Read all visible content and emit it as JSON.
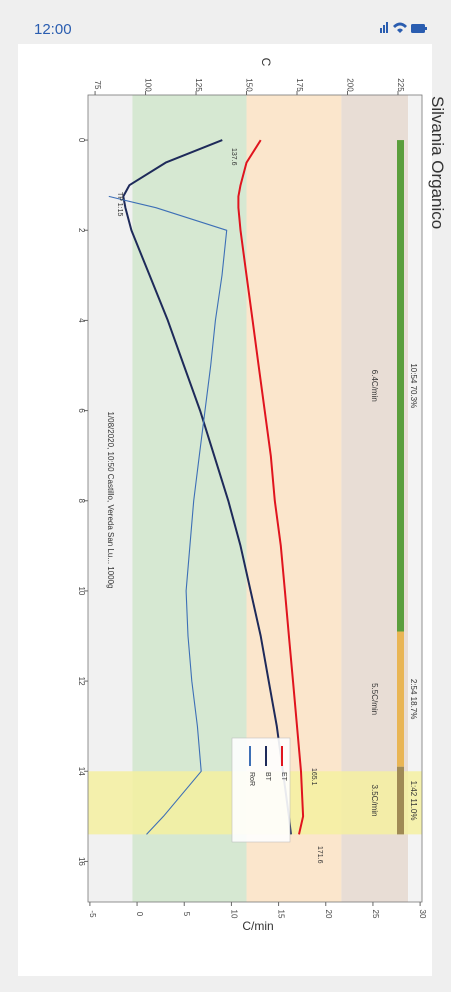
{
  "status_bar": {
    "time": "12:00"
  },
  "chart_data": {
    "type": "line",
    "title": "Silvania Organico",
    "ylabel": "C",
    "y2label": "C/min",
    "footer": "1/08/2020, 10:50  Castillo, Vereda San Lu...  1000g",
    "x": [
      0,
      0.5,
      1,
      1.25,
      1.5,
      2,
      3,
      4,
      5,
      6,
      7,
      8,
      9,
      10,
      11,
      12,
      13,
      14,
      15,
      15.4
    ],
    "xlim": [
      -1,
      16.9
    ],
    "xticks": [
      0,
      2,
      4,
      6,
      8,
      10,
      12,
      14,
      16
    ],
    "ylim": [
      71.5,
      236.9
    ],
    "yticks": [
      75,
      100,
      125,
      150,
      175,
      200,
      225
    ],
    "y2lim": [
      -5.2,
      30.2
    ],
    "y2ticks": [
      -5,
      0,
      5,
      10,
      15,
      20,
      25,
      30
    ],
    "series": [
      {
        "name": "ET",
        "color": "#e0141e",
        "values": [
          157,
          150,
          147,
          146,
          146,
          147,
          150,
          153,
          156,
          159,
          162,
          164,
          167,
          169,
          171,
          173,
          175,
          177,
          178,
          176
        ]
      },
      {
        "name": "BT",
        "color": "#1e2a5a",
        "values": [
          138,
          110,
          92,
          89,
          90,
          93,
          102,
          111,
          119,
          127,
          134,
          141,
          147,
          152,
          157,
          161,
          165,
          168,
          171,
          172
        ]
      },
      {
        "name": "RoR",
        "color": "#3d6fb6",
        "axis": "y2",
        "values": [
          null,
          null,
          null,
          -3,
          2,
          9.5,
          9,
          8.3,
          7.8,
          7.2,
          6.6,
          6,
          5.6,
          5.2,
          5.4,
          5.8,
          6.4,
          6.8,
          2.8,
          1
        ]
      }
    ],
    "bands": [
      {
        "from": 71.5,
        "to": 93.5,
        "color": "#f1f1f1"
      },
      {
        "from": 93.5,
        "to": 150,
        "color": "#d6e8d2"
      },
      {
        "from": 150,
        "to": 197,
        "color": "#fbe6cc"
      },
      {
        "from": 197,
        "to": 230,
        "color": "#e8ddd5"
      },
      {
        "from": 230,
        "to": 236.9,
        "color": "#f3f3f3"
      }
    ],
    "highlight": {
      "from": 14,
      "to": 15.4,
      "color": "#f4f0a0"
    },
    "phases": [
      {
        "label": "10:54  70.3%",
        "rate": "6.4C/min",
        "start": 0,
        "end": 10.9,
        "color": "#5b9e3c"
      },
      {
        "label": "2:54  18.7%",
        "rate": "5.5C/min",
        "start": 10.9,
        "end": 13.9,
        "color": "#e9b554"
      },
      {
        "label": "1:42  11.0%",
        "rate": "3.5C/min",
        "start": 13.9,
        "end": 15.4,
        "color": "#a08a55"
      }
    ],
    "annotations": [
      "137.6",
      "TP 1:15",
      "165.1",
      "171.6"
    ]
  }
}
